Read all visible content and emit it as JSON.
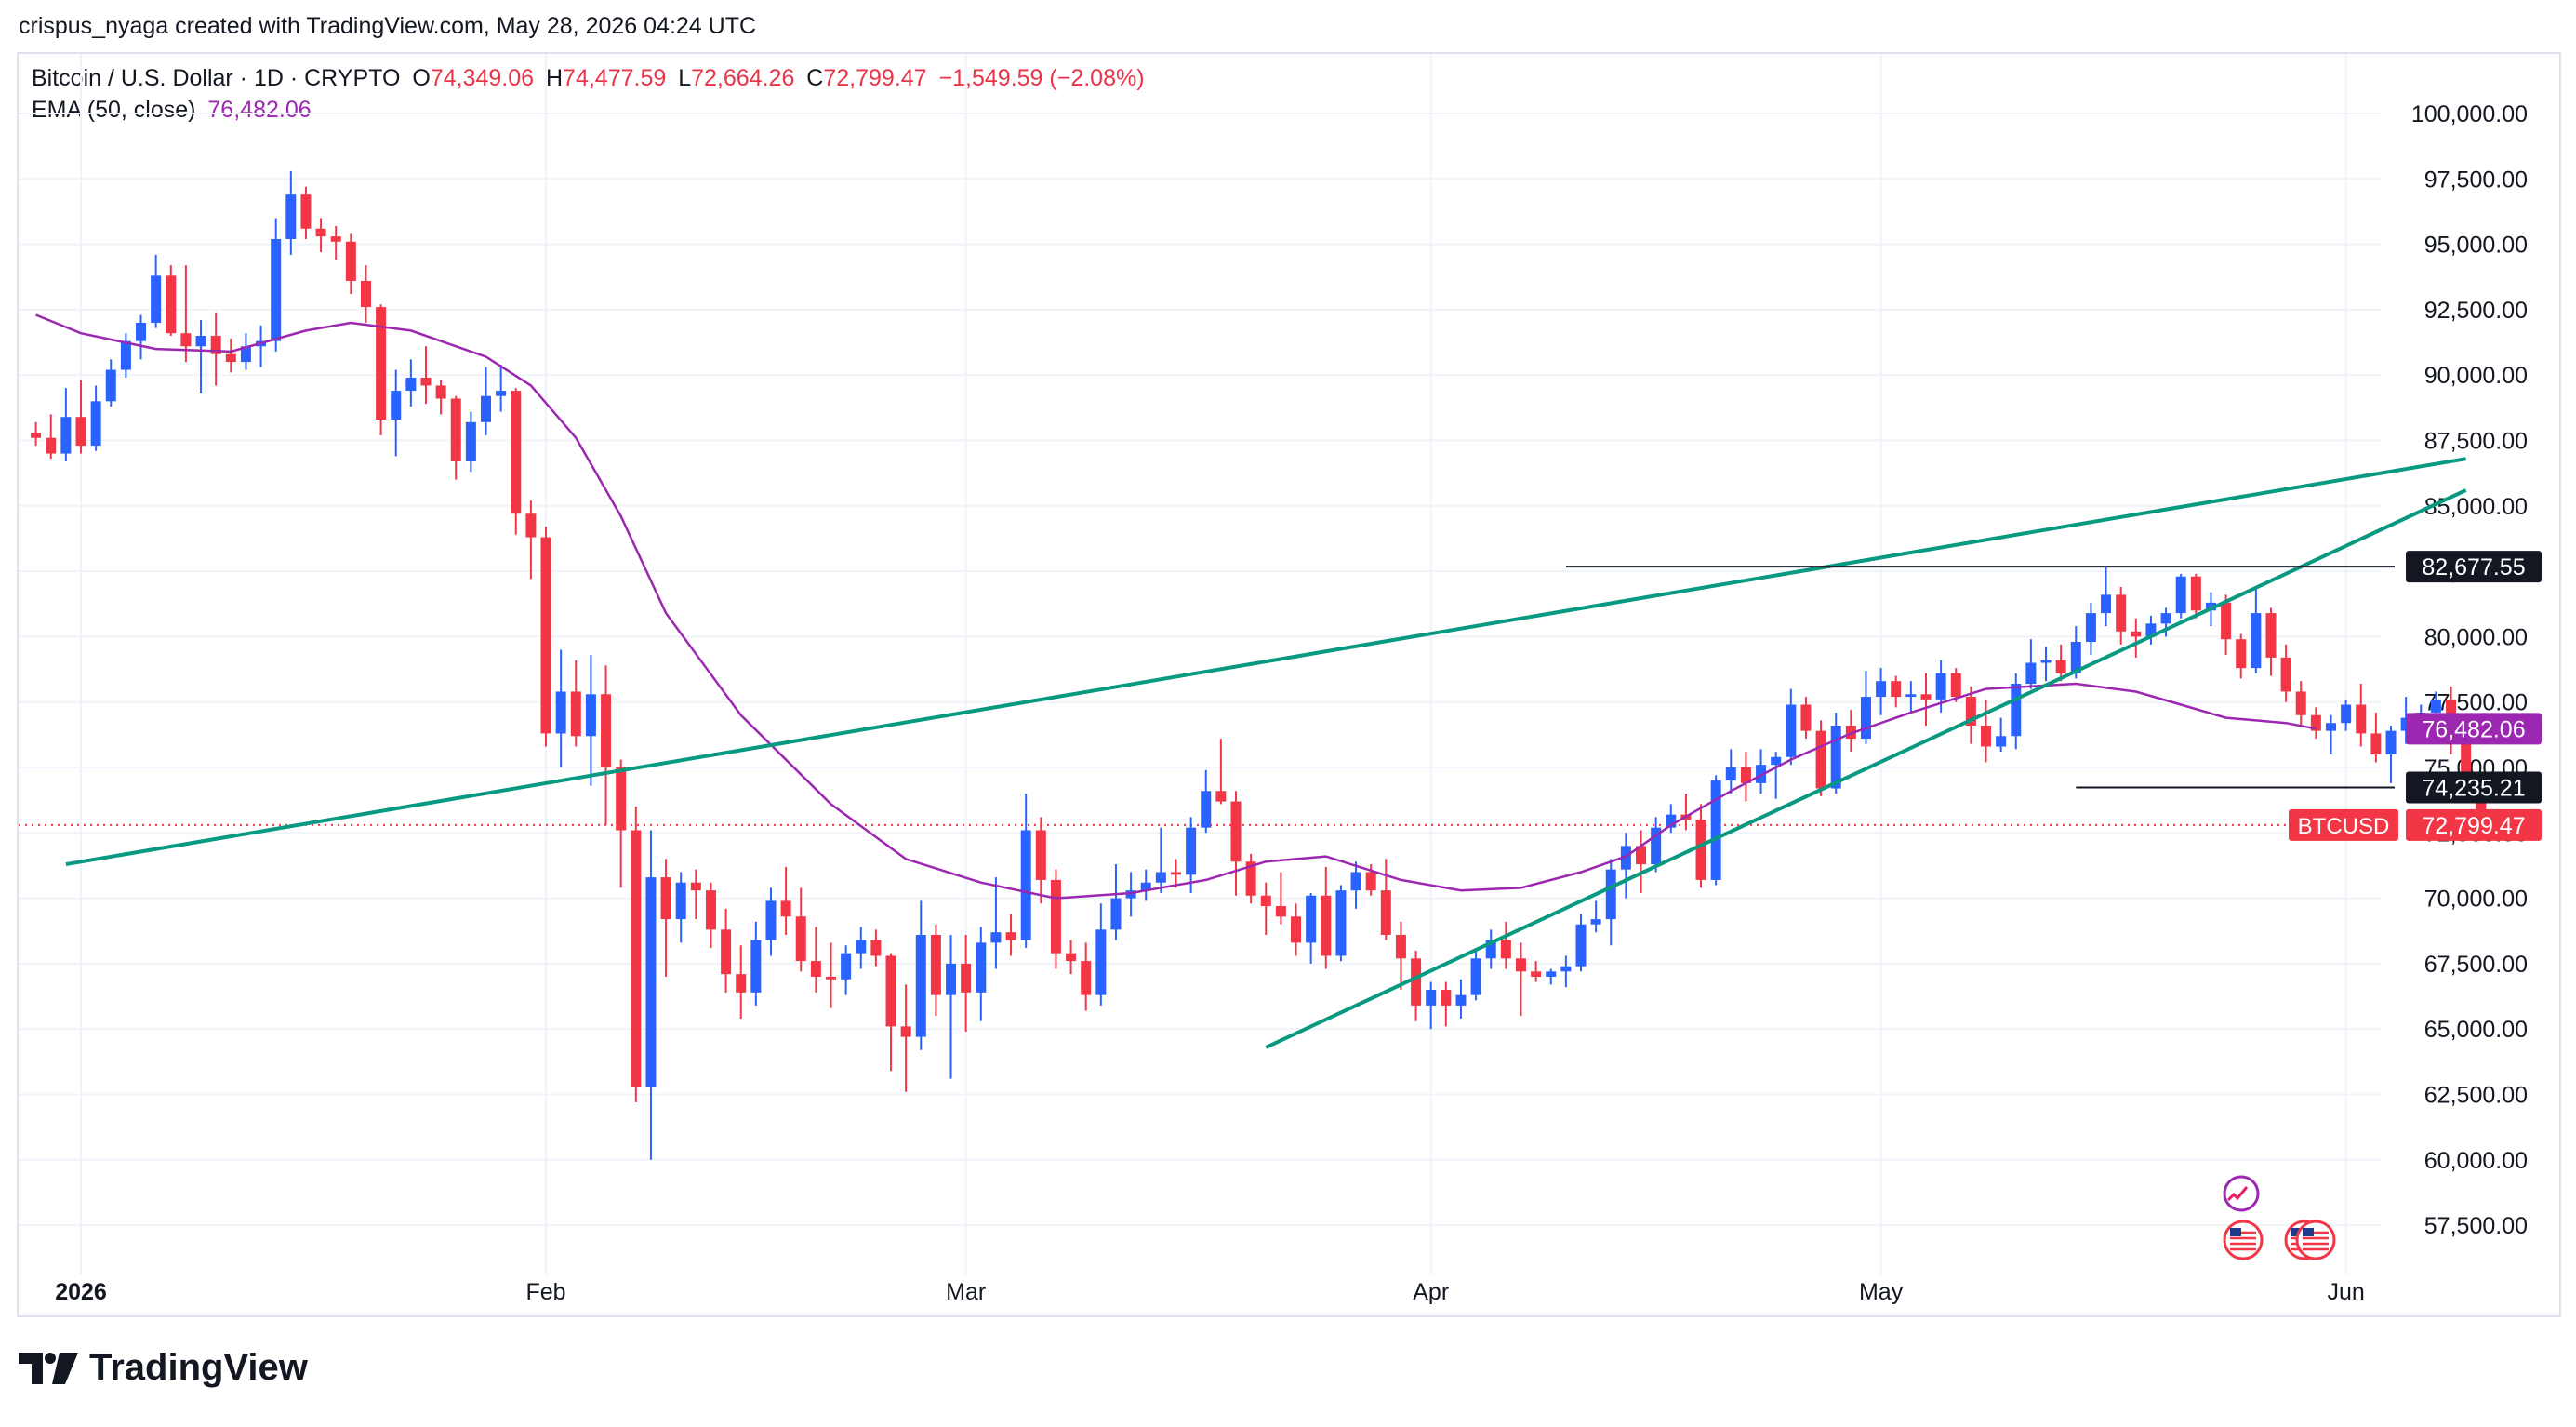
{
  "header": {
    "text": "crispus_nyaga created with TradingView.com, May 28, 2026 04:24 UTC"
  },
  "legend": {
    "symbol": "Bitcoin / U.S. Dollar · 1D · CRYPTO",
    "o_label": "O",
    "o": "74,349.06",
    "h_label": "H",
    "h": "74,477.59",
    "l_label": "L",
    "l": "72,664.26",
    "c_label": "C",
    "c": "72,799.47",
    "change": "−1,549.59 (−2.08%)",
    "ema_label": "EMA (50, close)",
    "ema": "76,482.06"
  },
  "footer": {
    "brand": "TradingView"
  },
  "colors": {
    "up": "#2962ff",
    "down": "#f23645",
    "ema": "#9c27b0",
    "trend": "#089981",
    "grid": "#f0f3fa"
  },
  "chart_data": {
    "type": "candlestick",
    "title": "Bitcoin / U.S. Dollar · 1D · CRYPTO",
    "ylim": [
      55000,
      102000
    ],
    "y_ticks": [
      "100,000.00",
      "97,500.00",
      "95,000.00",
      "92,500.00",
      "90,000.00",
      "87,500.00",
      "85,000.00",
      "82,500.00",
      "80,000.00",
      "77,500.00",
      "75,000.00",
      "72,500.00",
      "70,000.00",
      "67,500.00",
      "65,000.00",
      "62,500.00",
      "60,000.00",
      "57,500.00"
    ],
    "x_ticks": [
      {
        "label": "2026",
        "day": 0,
        "bold": true
      },
      {
        "label": "Feb",
        "day": 31,
        "bold": false
      },
      {
        "label": "Mar",
        "day": 59,
        "bold": false
      },
      {
        "label": "Apr",
        "day": 90,
        "bold": false
      },
      {
        "label": "May",
        "day": 120,
        "bold": false
      },
      {
        "label": "Jun",
        "day": 151,
        "bold": false
      }
    ],
    "first_day": -3,
    "candles": [
      [
        87800,
        88200,
        87300,
        87600
      ],
      [
        87600,
        88500,
        86800,
        87000
      ],
      [
        87000,
        89500,
        86700,
        88400
      ],
      [
        88400,
        89800,
        87000,
        87300
      ],
      [
        87300,
        89600,
        87100,
        89000
      ],
      [
        89000,
        90600,
        88800,
        90200
      ],
      [
        90200,
        91600,
        89900,
        91300
      ],
      [
        91300,
        92300,
        90600,
        92000
      ],
      [
        92000,
        94600,
        91800,
        93800
      ],
      [
        93800,
        94200,
        91500,
        91600
      ],
      [
        91600,
        94200,
        90500,
        91100
      ],
      [
        91100,
        92100,
        89300,
        91500
      ],
      [
        91500,
        92400,
        89600,
        90800
      ],
      [
        90800,
        91400,
        90100,
        90500
      ],
      [
        90500,
        91600,
        90200,
        91100
      ],
      [
        91100,
        91900,
        90300,
        91300
      ],
      [
        91300,
        96000,
        90900,
        95200
      ],
      [
        95200,
        97800,
        94600,
        96900
      ],
      [
        96900,
        97200,
        95200,
        95600
      ],
      [
        95600,
        96000,
        94700,
        95300
      ],
      [
        95300,
        95700,
        94400,
        95100
      ],
      [
        95100,
        95400,
        93100,
        93600
      ],
      [
        93600,
        94200,
        92000,
        92600
      ],
      [
        92600,
        92700,
        87700,
        88300
      ],
      [
        88300,
        90200,
        86900,
        89400
      ],
      [
        89400,
        90600,
        88800,
        89900
      ],
      [
        89900,
        91100,
        88900,
        89600
      ],
      [
        89600,
        89800,
        88500,
        89100
      ],
      [
        89100,
        89200,
        86000,
        86700
      ],
      [
        86700,
        88600,
        86300,
        88200
      ],
      [
        88200,
        90300,
        87700,
        89200
      ],
      [
        89200,
        90400,
        88600,
        89400
      ],
      [
        89400,
        89500,
        83900,
        84700
      ],
      [
        84700,
        85200,
        82200,
        83800
      ],
      [
        83800,
        84200,
        75800,
        76300
      ],
      [
        76300,
        79500,
        75000,
        77900
      ],
      [
        77900,
        79100,
        75800,
        76200
      ],
      [
        76200,
        79300,
        74300,
        77800
      ],
      [
        77800,
        78900,
        72800,
        75000
      ],
      [
        75000,
        75300,
        70400,
        72600
      ],
      [
        72600,
        73500,
        62200,
        62800
      ],
      [
        62800,
        72600,
        60000,
        70800
      ],
      [
        70800,
        71500,
        67000,
        69200
      ],
      [
        69200,
        71000,
        68300,
        70600
      ],
      [
        70600,
        71100,
        69200,
        70300
      ],
      [
        70300,
        70600,
        68100,
        68800
      ],
      [
        68800,
        69600,
        66400,
        67100
      ],
      [
        67100,
        68200,
        65400,
        66400
      ],
      [
        66400,
        69100,
        65900,
        68400
      ],
      [
        68400,
        70400,
        67800,
        69900
      ],
      [
        69900,
        71200,
        68600,
        69300
      ],
      [
        69300,
        70400,
        67200,
        67600
      ],
      [
        67600,
        68900,
        66400,
        67000
      ],
      [
        67000,
        68300,
        65800,
        66900
      ],
      [
        66900,
        68200,
        66300,
        67900
      ],
      [
        67900,
        68900,
        67300,
        68400
      ],
      [
        68400,
        68800,
        67400,
        67800
      ],
      [
        67800,
        67900,
        63400,
        65100
      ],
      [
        65100,
        66700,
        62600,
        64700
      ],
      [
        64700,
        69900,
        64200,
        68600
      ],
      [
        68600,
        69000,
        65500,
        66300
      ],
      [
        66300,
        68600,
        63100,
        67500
      ],
      [
        67500,
        68600,
        64900,
        66400
      ],
      [
        66400,
        68900,
        65300,
        68300
      ],
      [
        68300,
        70800,
        67300,
        68700
      ],
      [
        68700,
        69400,
        67800,
        68400
      ],
      [
        68400,
        74000,
        68100,
        72600
      ],
      [
        72600,
        73100,
        69800,
        70700
      ],
      [
        70700,
        71100,
        67300,
        67900
      ],
      [
        67900,
        68400,
        67100,
        67600
      ],
      [
        67600,
        68300,
        65700,
        66300
      ],
      [
        66300,
        69800,
        65900,
        68800
      ],
      [
        68800,
        71300,
        68400,
        70000
      ],
      [
        70000,
        71000,
        69300,
        70300
      ],
      [
        70300,
        71100,
        69900,
        70600
      ],
      [
        70600,
        72700,
        70200,
        71000
      ],
      [
        71000,
        71500,
        70400,
        70900
      ],
      [
        70900,
        73100,
        70200,
        72700
      ],
      [
        72700,
        74900,
        72500,
        74100
      ],
      [
        74100,
        76100,
        73600,
        73700
      ],
      [
        73700,
        74100,
        70100,
        71400
      ],
      [
        71400,
        71700,
        69800,
        70100
      ],
      [
        70100,
        70600,
        68600,
        69700
      ],
      [
        69700,
        71000,
        69000,
        69300
      ],
      [
        69300,
        69800,
        67800,
        68300
      ],
      [
        68300,
        70200,
        67500,
        70100
      ],
      [
        70100,
        71200,
        67300,
        67800
      ],
      [
        67800,
        70500,
        67600,
        70300
      ],
      [
        70300,
        71400,
        69600,
        71000
      ],
      [
        71000,
        71300,
        70100,
        70300
      ],
      [
        70300,
        71500,
        68400,
        68600
      ],
      [
        68600,
        69100,
        66500,
        67700
      ],
      [
        67700,
        68000,
        65300,
        65900
      ],
      [
        65900,
        66800,
        65000,
        66500
      ],
      [
        66500,
        66800,
        65100,
        65900
      ],
      [
        65900,
        66900,
        65400,
        66300
      ],
      [
        66300,
        68000,
        66100,
        67700
      ],
      [
        67700,
        68800,
        67300,
        68400
      ],
      [
        68400,
        69100,
        67300,
        67700
      ],
      [
        67700,
        68300,
        65500,
        67200
      ],
      [
        67200,
        67600,
        66800,
        67000
      ],
      [
        67000,
        67300,
        66700,
        67200
      ],
      [
        67200,
        67800,
        66600,
        67400
      ],
      [
        67400,
        69400,
        67200,
        69000
      ],
      [
        69000,
        69900,
        68700,
        69200
      ],
      [
        69200,
        71500,
        68200,
        71100
      ],
      [
        71100,
        72500,
        70000,
        72000
      ],
      [
        72000,
        72600,
        70200,
        71300
      ],
      [
        71300,
        73100,
        71000,
        72700
      ],
      [
        72700,
        73600,
        72500,
        73200
      ],
      [
        73200,
        74000,
        72600,
        73000
      ],
      [
        73000,
        73600,
        70400,
        70700
      ],
      [
        70700,
        74700,
        70500,
        74500
      ],
      [
        74500,
        75700,
        74000,
        75000
      ],
      [
        75000,
        75600,
        73700,
        74400
      ],
      [
        74400,
        75700,
        74000,
        75100
      ],
      [
        75100,
        75600,
        73800,
        75400
      ],
      [
        75400,
        78000,
        75100,
        77400
      ],
      [
        77400,
        77700,
        76100,
        76400
      ],
      [
        76400,
        76800,
        73900,
        74200
      ],
      [
        74200,
        77100,
        74000,
        76600
      ],
      [
        76600,
        77200,
        75600,
        76100
      ],
      [
        76100,
        78700,
        75900,
        77700
      ],
      [
        77700,
        78800,
        77000,
        78300
      ],
      [
        78300,
        78500,
        77300,
        77700
      ],
      [
        77700,
        78300,
        77100,
        77800
      ],
      [
        77800,
        78600,
        76600,
        77600
      ],
      [
        77600,
        79100,
        77100,
        78600
      ],
      [
        78600,
        78800,
        77500,
        77700
      ],
      [
        77700,
        78100,
        75900,
        76600
      ],
      [
        76600,
        77600,
        75200,
        75800
      ],
      [
        75800,
        76900,
        75600,
        76200
      ],
      [
        76200,
        78600,
        75700,
        78200
      ],
      [
        78200,
        79900,
        78000,
        79000
      ],
      [
        79000,
        79600,
        78300,
        79100
      ],
      [
        79100,
        79700,
        78300,
        78600
      ],
      [
        78600,
        80400,
        78400,
        79800
      ],
      [
        79800,
        81300,
        79300,
        80900
      ],
      [
        80900,
        82700,
        80400,
        81600
      ],
      [
        81600,
        81900,
        79700,
        80200
      ],
      [
        80200,
        80700,
        79200,
        80000
      ],
      [
        80000,
        80800,
        79700,
        80500
      ],
      [
        80500,
        81100,
        80000,
        80900
      ],
      [
        80900,
        82400,
        80700,
        82300
      ],
      [
        82300,
        82400,
        80700,
        81000
      ],
      [
        81000,
        81700,
        80400,
        81300
      ],
      [
        81300,
        81600,
        79300,
        79900
      ],
      [
        79900,
        80100,
        78400,
        78800
      ],
      [
        78800,
        81800,
        78600,
        80900
      ],
      [
        80900,
        81100,
        78500,
        79200
      ],
      [
        79200,
        79700,
        77500,
        77900
      ],
      [
        77900,
        78300,
        76600,
        77000
      ],
      [
        77000,
        77300,
        76100,
        76400
      ],
      [
        76400,
        77000,
        75500,
        76700
      ],
      [
        76700,
        77600,
        76400,
        77400
      ],
      [
        77400,
        78200,
        75800,
        76300
      ],
      [
        76300,
        77100,
        75200,
        75500
      ],
      [
        75500,
        76600,
        74400,
        76400
      ],
      [
        76400,
        77700,
        75900,
        76900
      ],
      [
        76900,
        77400,
        76400,
        77100
      ],
      [
        77100,
        77900,
        76200,
        77600
      ],
      [
        77600,
        78100,
        75500,
        75900
      ],
      [
        75900,
        76100,
        73900,
        74350
      ],
      [
        74350,
        74480,
        72660,
        72800
      ]
    ],
    "ema": {
      "label": "EMA (50, close)",
      "values": [
        [
          -3,
          92300
        ],
        [
          0,
          91600
        ],
        [
          5,
          91000
        ],
        [
          10,
          90900
        ],
        [
          15,
          91700
        ],
        [
          18,
          92000
        ],
        [
          22,
          91700
        ],
        [
          27,
          90700
        ],
        [
          30,
          89600
        ],
        [
          33,
          87600
        ],
        [
          36,
          84600
        ],
        [
          39,
          80900
        ],
        [
          44,
          77000
        ],
        [
          50,
          73600
        ],
        [
          55,
          71500
        ],
        [
          60,
          70600
        ],
        [
          65,
          70000
        ],
        [
          70,
          70200
        ],
        [
          75,
          70700
        ],
        [
          79,
          71400
        ],
        [
          83,
          71600
        ],
        [
          88,
          70700
        ],
        [
          92,
          70300
        ],
        [
          96,
          70400
        ],
        [
          100,
          71000
        ],
        [
          103,
          71600
        ],
        [
          106,
          72800
        ],
        [
          110,
          74100
        ],
        [
          114,
          75300
        ],
        [
          118,
          76300
        ],
        [
          122,
          77100
        ],
        [
          127,
          78000
        ],
        [
          133,
          78200
        ],
        [
          137,
          77900
        ],
        [
          140,
          77400
        ],
        [
          143,
          76900
        ],
        [
          147,
          76700
        ],
        [
          149,
          76482
        ]
      ]
    },
    "trendlines": [
      {
        "from": [
          -1,
          71300
        ],
        "to": [
          159,
          86800
        ]
      },
      {
        "from": [
          79,
          64300
        ],
        "to": [
          159,
          85600
        ]
      }
    ],
    "hlines": [
      {
        "from_day": 99,
        "value": 82677.55,
        "label": "82,677.55"
      },
      {
        "from_day": 133,
        "value": 74235.21,
        "label": "74,235.21"
      }
    ],
    "price_labels": [
      {
        "value": 76482.06,
        "label": "76,482.06",
        "color": "#9c27b0"
      },
      {
        "value": 72799.47,
        "label": "72,799.47",
        "color": "#f23645",
        "symbol": "BTCUSD"
      }
    ]
  }
}
